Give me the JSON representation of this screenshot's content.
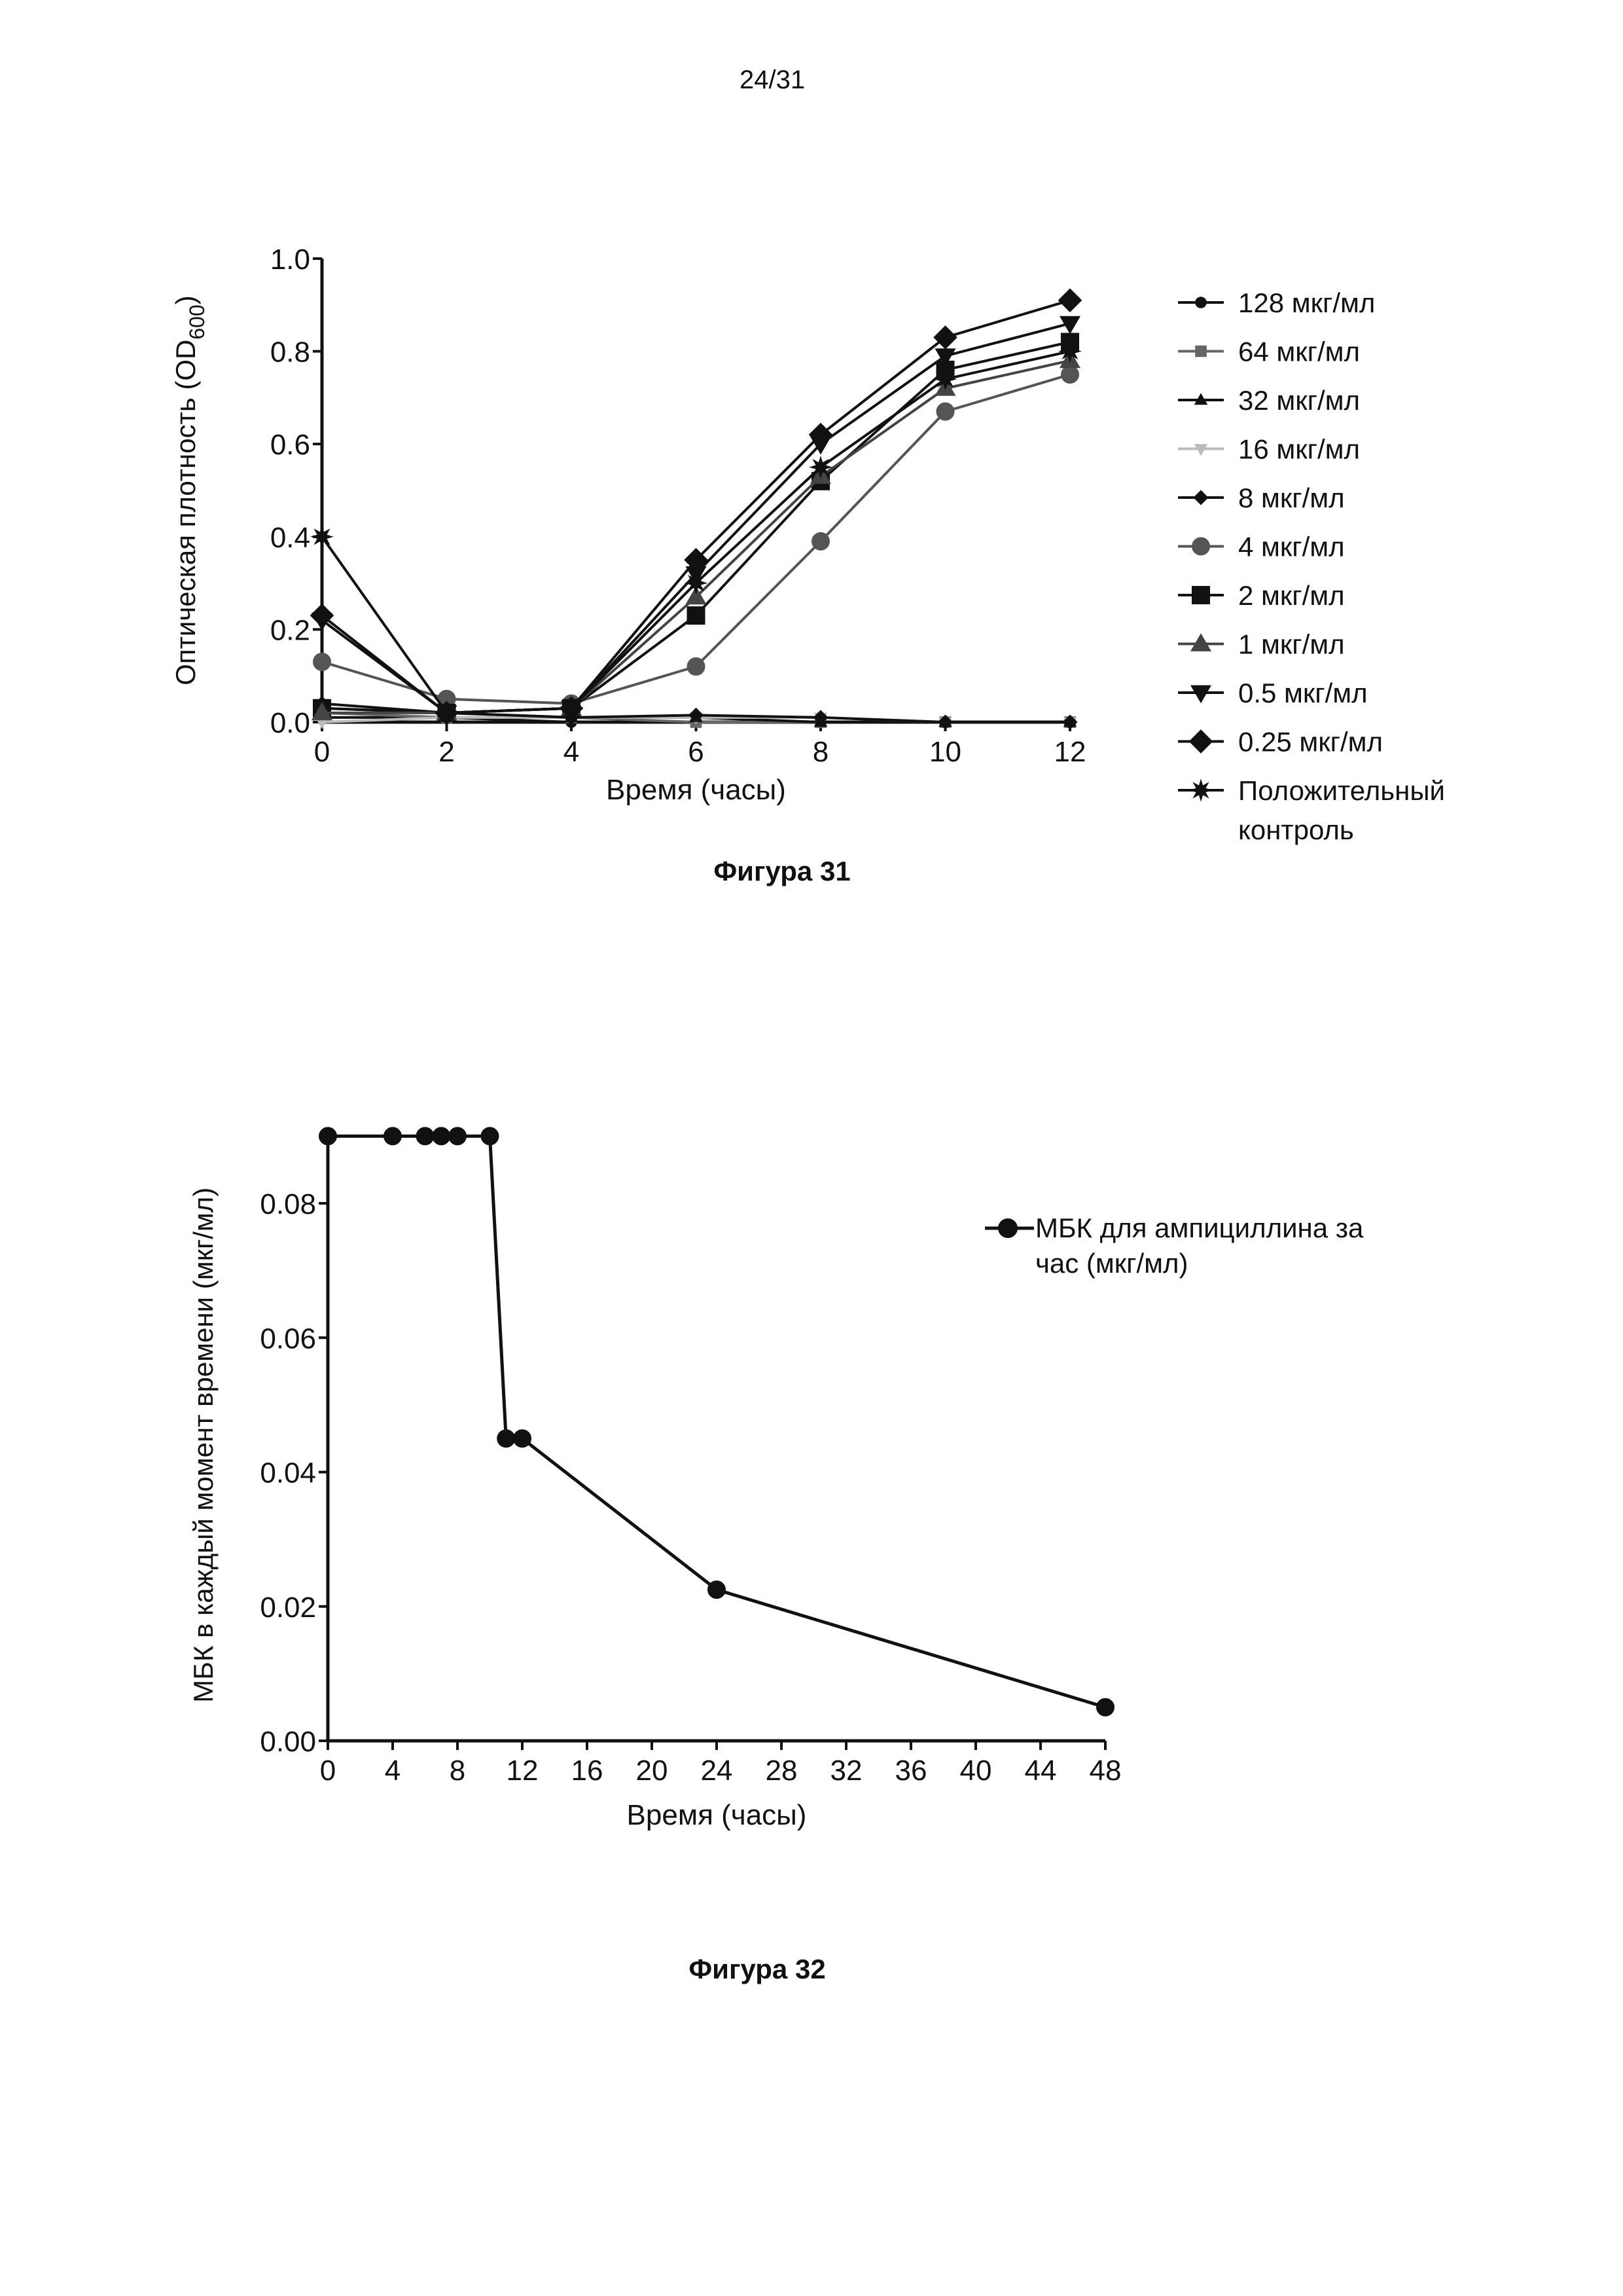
{
  "page_number": "24/31",
  "chart_data": [
    {
      "type": "line",
      "caption": "Фигура 31",
      "xlabel": "Время (часы)",
      "ylabel": "Оптическая плотность (OD",
      "ylabel_sub": "600",
      "ylabel_end": ")",
      "xlim": [
        0,
        12
      ],
      "ylim": [
        0,
        1.0
      ],
      "xticks": [
        "0",
        "2",
        "4",
        "6",
        "8",
        "10",
        "12"
      ],
      "yticks": [
        "0.0",
        "0.2",
        "0.4",
        "0.6",
        "0.8",
        "1.0"
      ],
      "x": [
        0,
        2,
        4,
        6,
        8,
        10,
        12
      ],
      "legend_placement": "right",
      "series": [
        {
          "name": "128 мкг/мл",
          "marker": "circle-small",
          "color": "#111111",
          "values": [
            0.01,
            0.01,
            0.0,
            0.0,
            0.0,
            0.0,
            0.0
          ]
        },
        {
          "name": "64 мкг/мл",
          "marker": "square-small",
          "color": "#666666",
          "values": [
            0.02,
            0.01,
            0.01,
            0.0,
            0.0,
            0.0,
            0.0
          ]
        },
        {
          "name": "32 мкг/мл",
          "marker": "triangle-up-small",
          "color": "#111111",
          "values": [
            0.03,
            0.02,
            0.01,
            0.01,
            0.0,
            0.0,
            0.0
          ]
        },
        {
          "name": "16 мкг/мл",
          "marker": "triangle-down-small",
          "color": "#bbbbbb",
          "values": [
            0.0,
            0.01,
            0.01,
            0.01,
            0.01,
            0.0,
            0.0
          ]
        },
        {
          "name": "8 мкг/мл",
          "marker": "diamond-small",
          "color": "#111111",
          "values": [
            0.04,
            0.02,
            0.01,
            0.015,
            0.01,
            0.0,
            0.0
          ]
        },
        {
          "name": "4 мкг/мл",
          "marker": "circle",
          "color": "#555555",
          "values": [
            0.13,
            0.05,
            0.04,
            0.12,
            0.39,
            0.67,
            0.75
          ]
        },
        {
          "name": "2 мкг/мл",
          "marker": "square",
          "color": "#111111",
          "values": [
            0.03,
            0.02,
            0.03,
            0.23,
            0.52,
            0.76,
            0.82
          ]
        },
        {
          "name": "1 мкг/мл",
          "marker": "triangle-up",
          "color": "#444444",
          "values": [
            0.02,
            0.02,
            0.03,
            0.27,
            0.53,
            0.72,
            0.78
          ]
        },
        {
          "name": "0.5 мкг/мл",
          "marker": "triangle-down",
          "color": "#111111",
          "values": [
            0.22,
            0.02,
            0.03,
            0.32,
            0.6,
            0.79,
            0.86
          ]
        },
        {
          "name": "0.25 мкг/мл",
          "marker": "diamond",
          "color": "#111111",
          "values": [
            0.23,
            0.02,
            0.03,
            0.35,
            0.62,
            0.83,
            0.91
          ]
        },
        {
          "name": "Положительный контроль",
          "name_lines": [
            "Положительный",
            "контроль"
          ],
          "marker": "star",
          "color": "#111111",
          "values": [
            0.4,
            0.02,
            0.03,
            0.3,
            0.55,
            0.74,
            0.8
          ]
        }
      ]
    },
    {
      "type": "line",
      "caption": "Фигура 32",
      "xlabel": "Время (часы)",
      "ylabel": "МБК в каждый момент времени (мкг/мл)",
      "xlim": [
        0,
        48
      ],
      "ylim": [
        0,
        0.09
      ],
      "xticks": [
        "0",
        "4",
        "8",
        "12",
        "16",
        "20",
        "24",
        "28",
        "32",
        "36",
        "40",
        "44",
        "48"
      ],
      "yticks": [
        "0.00",
        "0.02",
        "0.04",
        "0.06",
        "0.08"
      ],
      "legend_placement": "top-right",
      "series": [
        {
          "name": "МБК для ампициллина за час (мкг/мл)",
          "name_lines": [
            "МБК для ампициллина за",
            "час (мкг/мл)"
          ],
          "marker": "circle",
          "color": "#111111",
          "x": [
            0,
            4,
            6,
            7,
            8,
            10,
            11,
            12,
            24,
            48
          ],
          "values": [
            0.09,
            0.09,
            0.09,
            0.09,
            0.09,
            0.09,
            0.045,
            0.045,
            0.0225,
            0.005
          ]
        }
      ]
    }
  ]
}
